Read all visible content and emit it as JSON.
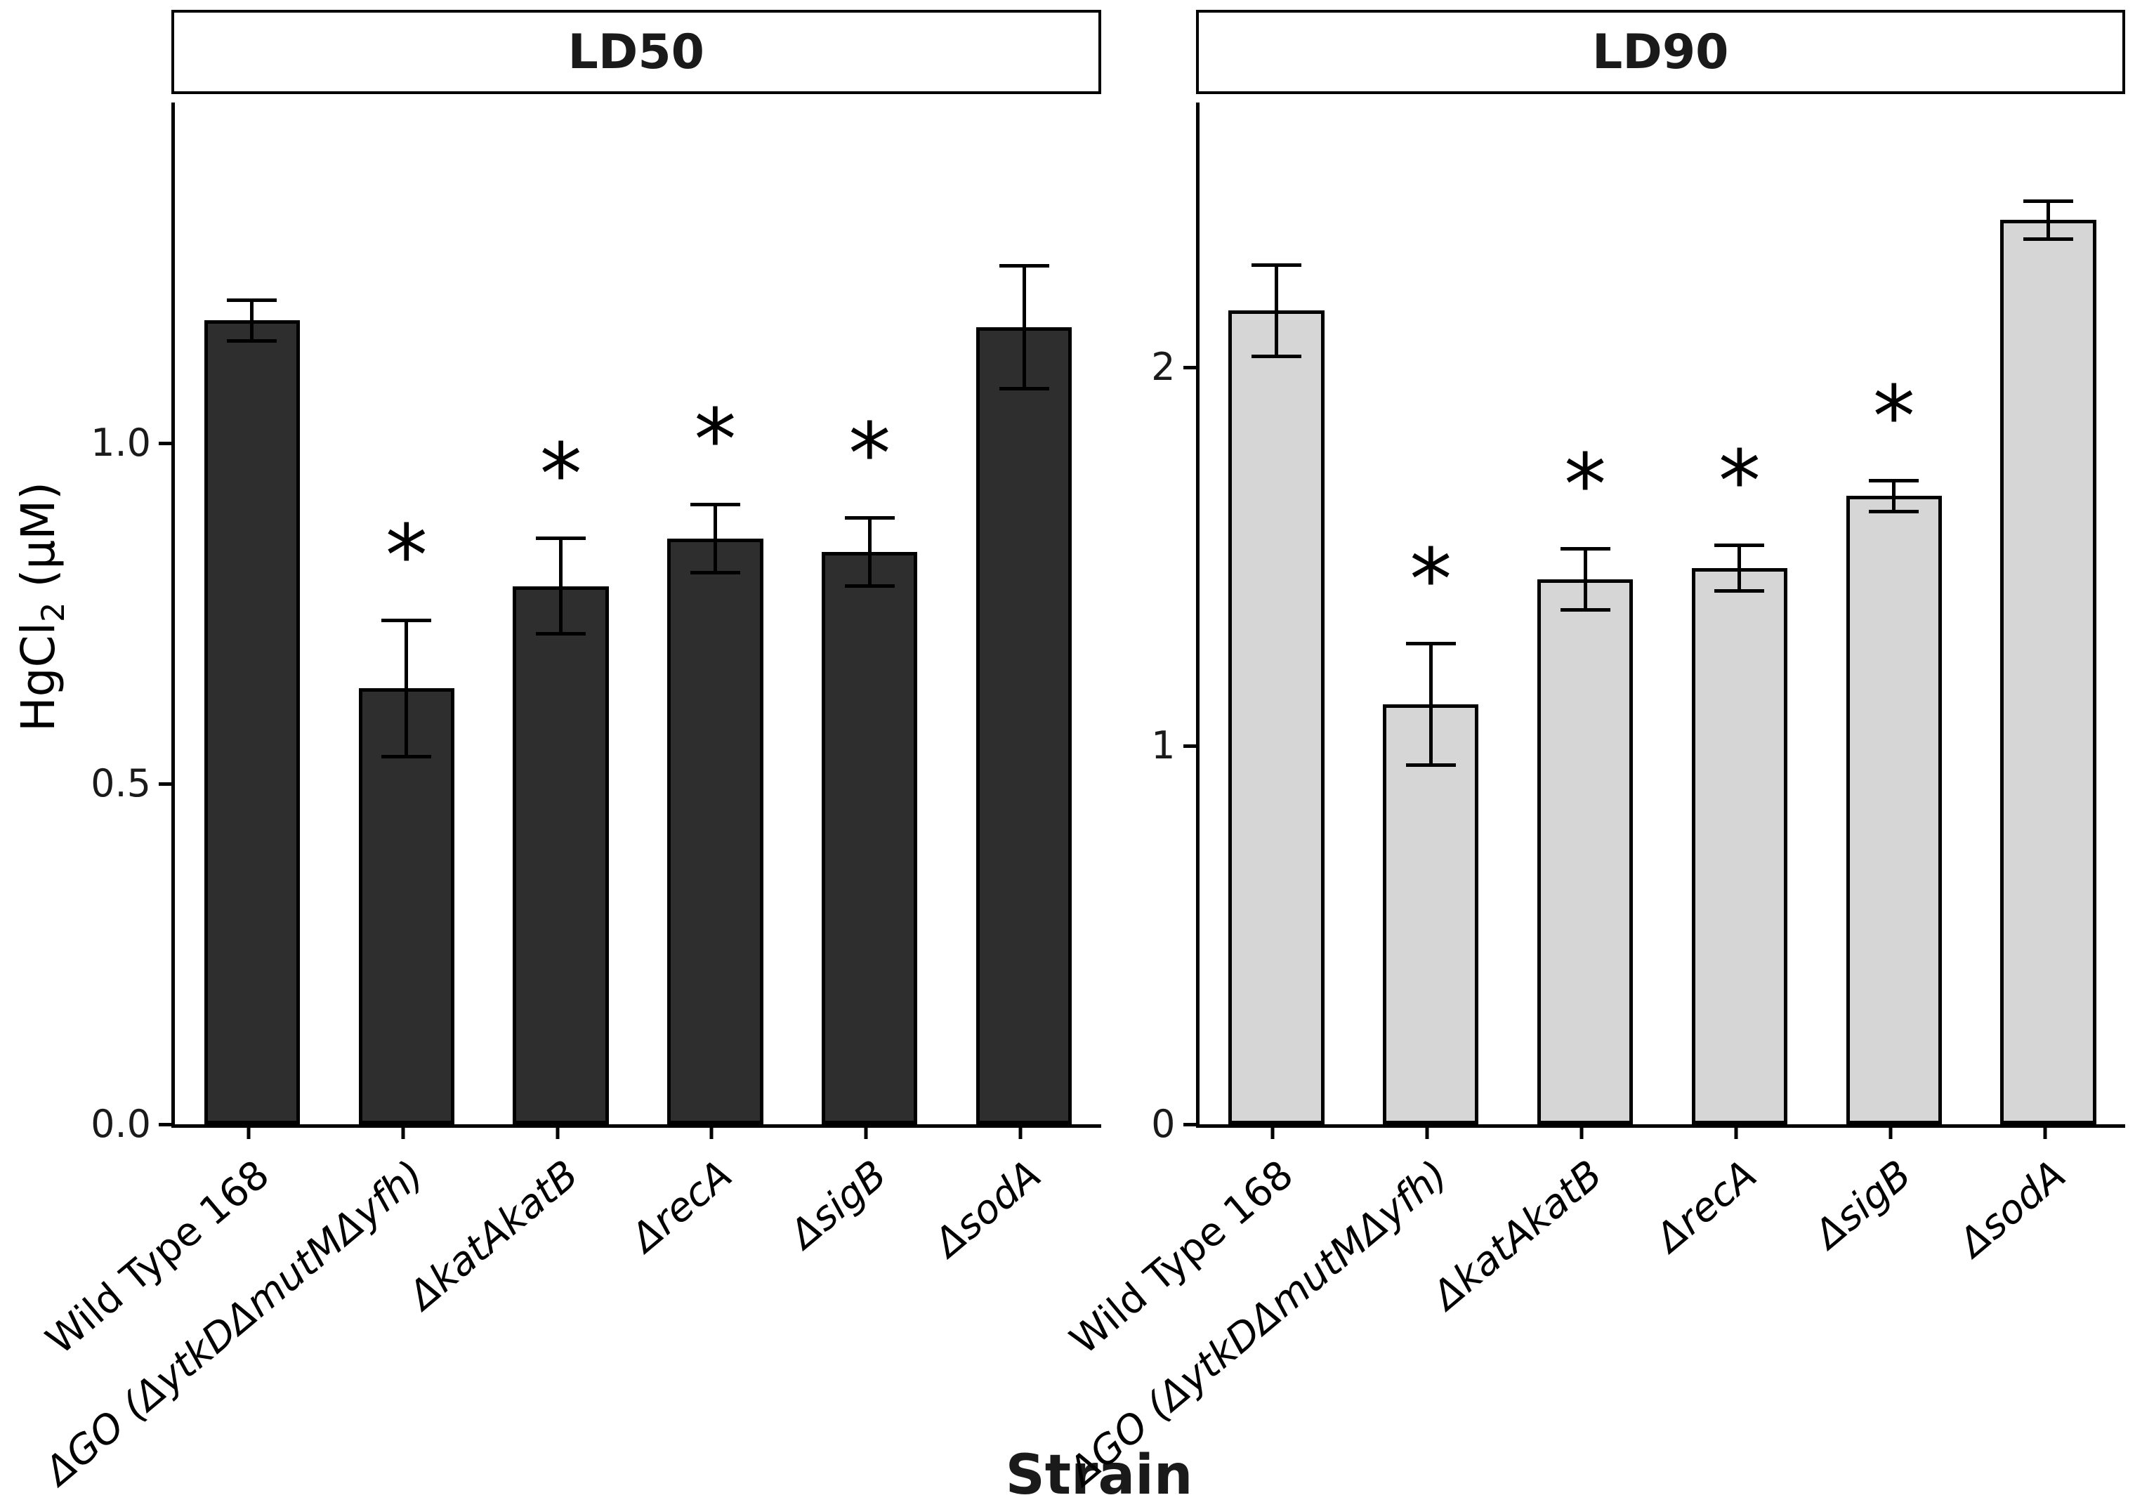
{
  "figure": {
    "x_axis_title": "Strain",
    "y_axis_title_main": "HgCl",
    "y_axis_title_sub": "2",
    "y_axis_title_unit": " (μM)"
  },
  "chart_data": {
    "type": "bar",
    "title": "",
    "xlabel": "Strain",
    "ylabel": "HgCl2 (μM)",
    "grid": false,
    "legend": false,
    "significance_symbol": "*",
    "error_bars": true,
    "categories": [
      {
        "label": "Wild Type 168",
        "italic": false
      },
      {
        "label": "ΔGO (ΔytkDΔmutMΔyfh)",
        "italic": true
      },
      {
        "label": "ΔkatAkatB",
        "italic": true
      },
      {
        "label": "ΔrecA",
        "italic": true
      },
      {
        "label": "ΔsigB",
        "italic": true
      },
      {
        "label": "ΔsodA",
        "italic": true
      }
    ],
    "facets": [
      {
        "title": "LD50",
        "bar_fill": "#2e2e2e",
        "bar_outline": "#000000",
        "ylim": [
          0,
          1.5
        ],
        "yticks": [
          {
            "value": 0,
            "label": "0.0"
          },
          {
            "value": 0.5,
            "label": "0.5"
          },
          {
            "value": 1.0,
            "label": "1.0"
          }
        ],
        "values": [
          1.18,
          0.64,
          0.79,
          0.86,
          0.84,
          1.17
        ],
        "errors": [
          0.03,
          0.1,
          0.07,
          0.05,
          0.05,
          0.09
        ],
        "significant": [
          false,
          true,
          true,
          true,
          true,
          false
        ]
      },
      {
        "title": "LD90",
        "bar_fill": "#d6d6d6",
        "bar_outline": "#000000",
        "ylim": [
          0,
          2.7
        ],
        "yticks": [
          {
            "value": 0,
            "label": "0"
          },
          {
            "value": 1,
            "label": "1"
          },
          {
            "value": 2,
            "label": "2"
          }
        ],
        "values": [
          2.15,
          1.11,
          1.44,
          1.47,
          1.66,
          2.39
        ],
        "errors": [
          0.12,
          0.16,
          0.08,
          0.06,
          0.04,
          0.05
        ],
        "significant": [
          false,
          true,
          true,
          true,
          true,
          false
        ]
      }
    ]
  }
}
